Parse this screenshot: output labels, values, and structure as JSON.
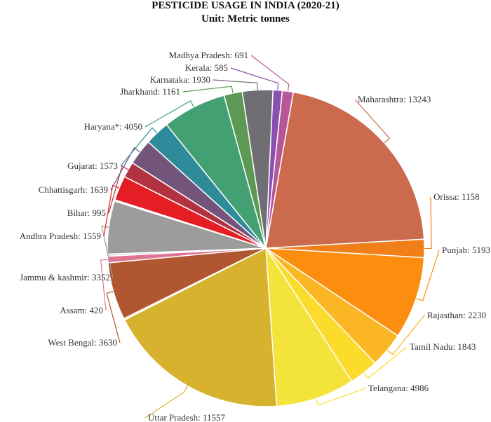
{
  "chart_data": {
    "type": "pie",
    "title": "PESTICIDE USAGE IN INDIA (2020-21)",
    "subtitle": "Unit: Metric tonnes",
    "slices": [
      {
        "label": "Maharashtra",
        "value": 13243,
        "color": "#cc6a4e",
        "text": "Maharashtra: 13243"
      },
      {
        "label": "Orissa",
        "value": 1158,
        "color": "#f07f1a",
        "text": "Orissa: 1158"
      },
      {
        "label": "Punjab",
        "value": 5193,
        "color": "#fb8e0f",
        "text": "Punjab: 5193"
      },
      {
        "label": "Rajasthan",
        "value": 2230,
        "color": "#fbb624",
        "text": "Rajasthan: 2230"
      },
      {
        "label": "Tamil Nadu",
        "value": 1843,
        "color": "#fbdc2a",
        "text": "Tamil Nadu: 1843"
      },
      {
        "label": "Telangana",
        "value": 4986,
        "color": "#f4e33a",
        "text": "Telangana: 4986"
      },
      {
        "label": "Uttar Pradesh",
        "value": 11557,
        "color": "#d6b22f",
        "text": "Uttar Pradesh: 11557"
      },
      {
        "label": "",
        "value": 100,
        "color": "#e8e0c0",
        "text": ""
      },
      {
        "label": "West Bengal",
        "value": 3630,
        "color": "#b05630",
        "text": "West Bengal: 3630"
      },
      {
        "label": "Assam",
        "value": 420,
        "color": "#e07592",
        "text": "Assam: 420"
      },
      {
        "label": "",
        "value": 130,
        "color": "#dddddd",
        "text": ""
      },
      {
        "label": "Jammu & kashmir",
        "value": 3352,
        "color": "#9c9c9c",
        "text": "Jammu & kashmir: 3352"
      },
      {
        "label": "",
        "value": 90,
        "color": "#eeeeee",
        "text": ""
      },
      {
        "label": "Andhra Pradesh",
        "value": 1559,
        "color": "#e51e25",
        "text": "Andhra Pradesh: 1559"
      },
      {
        "label": "Bihar",
        "value": 995,
        "color": "#b2323f",
        "text": "Bihar: 995"
      },
      {
        "label": "Chhattisgarh",
        "value": 1639,
        "color": "#73557c",
        "text": "Chhattisgarh: 1639"
      },
      {
        "label": "Gujarat",
        "value": 1573,
        "color": "#2e8b99",
        "text": "Gujarat: 1573"
      },
      {
        "label": "Haryana*",
        "value": 4050,
        "color": "#43a072",
        "text": "Haryana*: 4050"
      },
      {
        "label": "Jharkhand",
        "value": 1161,
        "color": "#5d9955",
        "text": "Jharkhand: 1161"
      },
      {
        "label": "Karnataka",
        "value": 1930,
        "color": "#6f6f73",
        "text": "Karnataka: 1930"
      },
      {
        "label": "Kerala",
        "value": 585,
        "color": "#8a4fb0",
        "text": "Kerala: 585"
      },
      {
        "label": "Madhya Pradesh",
        "value": 691,
        "color": "#b8569a",
        "text": "Madhya Pradesh: 691"
      }
    ]
  }
}
